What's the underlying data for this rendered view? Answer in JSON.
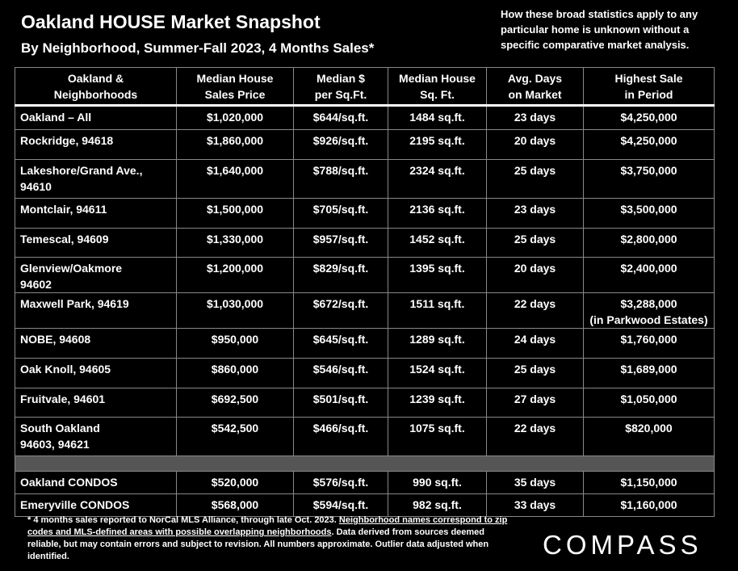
{
  "header": {
    "title": "Oakland HOUSE Market Snapshot",
    "subtitle": "By Neighborhood, Summer-Fall 2023, 4 Months Sales*",
    "note": [
      "How these broad statistics apply to any",
      "particular home is unknown without a",
      "specific comparative market analysis."
    ]
  },
  "table": {
    "columns": [
      [
        "Oakland &",
        "Neighborhoods"
      ],
      [
        "Median House",
        "Sales Price"
      ],
      [
        "Median $",
        "per Sq.Ft."
      ],
      [
        "Median House",
        "Sq. Ft."
      ],
      [
        "Avg. Days",
        "on Market"
      ],
      [
        "Highest Sale",
        "in Period"
      ]
    ],
    "rows": [
      [
        [
          "Oakland – All"
        ],
        "$1,020,000",
        "$644/sq.ft.",
        "1484 sq.ft.",
        "23 days",
        [
          "$4,250,000"
        ]
      ],
      [
        [
          "Rockridge, 94618"
        ],
        "$1,860,000",
        "$926/sq.ft.",
        "2195 sq.ft.",
        "20 days",
        [
          "$4,250,000"
        ]
      ],
      [
        [
          "Lakeshore/Grand Ave.,",
          "94610"
        ],
        "$1,640,000",
        "$788/sq.ft.",
        "2324 sq.ft.",
        "25 days",
        [
          "$3,750,000"
        ]
      ],
      [
        [
          "Montclair, 94611"
        ],
        "$1,500,000",
        "$705/sq.ft.",
        "2136 sq.ft.",
        "23 days",
        [
          "$3,500,000"
        ]
      ],
      [
        [
          "Temescal, 94609"
        ],
        "$1,330,000",
        "$957/sq.ft.",
        "1452 sq.ft.",
        "25 days",
        [
          "$2,800,000"
        ]
      ],
      [
        [
          "Glenview/Oakmore",
          "94602"
        ],
        "$1,200,000",
        "$829/sq.ft.",
        "1395 sq.ft.",
        "20 days",
        [
          "$2,400,000"
        ]
      ],
      [
        [
          "Maxwell Park, 94619"
        ],
        "$1,030,000",
        "$672/sq.ft.",
        "1511 sq.ft.",
        "22 days",
        [
          "$3,288,000",
          "(in Parkwood Estates)"
        ]
      ],
      [
        [
          "NOBE, 94608"
        ],
        "$950,000",
        "$645/sq.ft.",
        "1289 sq.ft.",
        "24 days",
        [
          "$1,760,000"
        ]
      ],
      [
        [
          "Oak Knoll, 94605"
        ],
        "$860,000",
        "$546/sq.ft.",
        "1524 sq.ft.",
        "25 days",
        [
          "$1,689,000"
        ]
      ],
      [
        [
          "Fruitvale, 94601"
        ],
        "$692,500",
        "$501/sq.ft.",
        "1239 sq.ft.",
        "27 days",
        [
          "$1,050,000"
        ]
      ],
      [
        [
          "South Oakland",
          "94603, 94621"
        ],
        "$542,500",
        "$466/sq.ft.",
        "1075 sq.ft.",
        "22 days",
        [
          "$820,000"
        ]
      ]
    ],
    "condo_rows": [
      [
        [
          "Oakland CONDOS"
        ],
        "$520,000",
        "$576/sq.ft.",
        "990 sq.ft.",
        "35 days",
        [
          "$1,150,000"
        ]
      ],
      [
        [
          "Emeryville CONDOS"
        ],
        "$568,000",
        "$594/sq.ft.",
        "982 sq.ft.",
        "33 days",
        [
          "$1,160,000"
        ]
      ]
    ]
  },
  "footnote": {
    "before": "* 4 months sales reported to NorCal MLS Alliance, through late Oct. 2023.",
    "underlined": "Neighborhood names correspond to zip codes and MLS-defined areas with possible overlapping neighborhoods",
    "after": ". Data derived from sources deemed reliable, but may contain errors and subject to revision. All numbers approximate. Outlier data adjusted when identified."
  },
  "logo": "COMPASS"
}
